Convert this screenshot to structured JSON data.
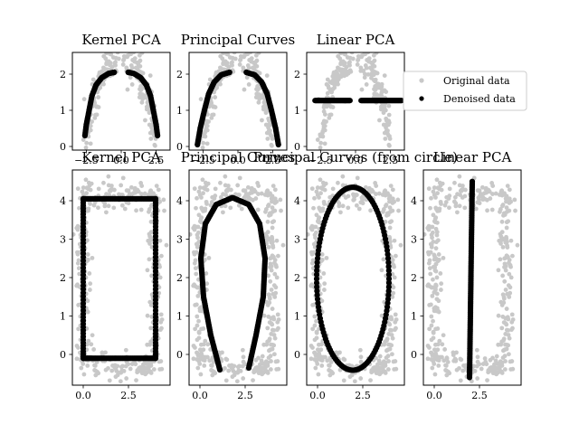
{
  "chart_data": [
    {
      "type": "scatter",
      "title": "Kernel PCA",
      "xlim": [
        -3.5,
        3.5
      ],
      "ylim": [
        -0.1,
        2.6
      ],
      "xticks": [
        "-2.5",
        "0.0",
        "2.5"
      ],
      "yticks": [
        "0",
        "1",
        "2"
      ],
      "series": [
        {
          "name": "Original data",
          "color": "#c8c8c8",
          "description": "two noisy arches: x between about -2.6 and -0.4 and between 0.4 and 2.6, y up to about 2.4"
        },
        {
          "name": "Denoised data",
          "color": "#000000",
          "points": [
            [
              -2.6,
              0.3
            ],
            [
              -2.5,
              0.6
            ],
            [
              -2.3,
              1.0
            ],
            [
              -2.1,
              1.4
            ],
            [
              -1.8,
              1.7
            ],
            [
              -1.4,
              1.9
            ],
            [
              -0.9,
              2.02
            ],
            [
              -0.5,
              2.05
            ],
            [
              0.5,
              2.05
            ],
            [
              0.9,
              2.02
            ],
            [
              1.4,
              1.9
            ],
            [
              1.8,
              1.7
            ],
            [
              2.1,
              1.4
            ],
            [
              2.3,
              1.0
            ],
            [
              2.5,
              0.6
            ],
            [
              2.6,
              0.3
            ]
          ]
        }
      ]
    },
    {
      "type": "scatter",
      "title": "Principal Curves",
      "xlim": [
        -3.5,
        3.5
      ],
      "ylim": [
        -0.1,
        2.6
      ],
      "xticks": [
        "-2.5",
        "0.0",
        "2.5"
      ],
      "yticks": [
        "0",
        "1",
        "2"
      ],
      "series": [
        {
          "name": "Original data",
          "color": "#c8c8c8"
        },
        {
          "name": "Denoised data",
          "color": "#000000",
          "points": [
            [
              -2.9,
              0.05
            ],
            [
              -2.7,
              0.5
            ],
            [
              -2.4,
              1.0
            ],
            [
              -2.1,
              1.45
            ],
            [
              -1.7,
              1.78
            ],
            [
              -1.2,
              1.98
            ],
            [
              -0.6,
              2.05
            ],
            [
              0.6,
              2.05
            ],
            [
              1.2,
              1.98
            ],
            [
              1.7,
              1.78
            ],
            [
              2.1,
              1.45
            ],
            [
              2.4,
              1.0
            ],
            [
              2.7,
              0.5
            ],
            [
              2.9,
              0.05
            ]
          ]
        }
      ]
    },
    {
      "type": "scatter",
      "title": "Linear PCA",
      "xlim": [
        -3.5,
        3.5
      ],
      "ylim": [
        -0.1,
        2.6
      ],
      "xticks": [
        "-2.5",
        "0.0",
        "2.5"
      ],
      "yticks": [
        "0",
        "1",
        "2"
      ],
      "series": [
        {
          "name": "Original data",
          "color": "#c8c8c8"
        },
        {
          "name": "Denoised data",
          "color": "#000000",
          "segments": [
            [
              [
                -2.9,
                1.27
              ],
              [
                -0.4,
                1.27
              ]
            ],
            [
              [
                0.4,
                1.27
              ],
              [
                3.3,
                1.27
              ]
            ]
          ]
        }
      ]
    },
    {
      "type": "scatter",
      "title": "Kernel PCA",
      "xlim": [
        -0.6,
        4.8
      ],
      "ylim": [
        -0.8,
        4.8
      ],
      "xticks": [
        "0.0",
        "2.5"
      ],
      "yticks": [
        "0",
        "1",
        "2",
        "3",
        "4"
      ],
      "series": [
        {
          "name": "Original data",
          "color": "#c8c8c8",
          "description": "noisy rectangle: x about 0 to 4, y about -0.5 to 4.5"
        },
        {
          "name": "Denoised data",
          "color": "#000000",
          "shape": "rounded-rectangle",
          "x_range": [
            0.0,
            4.0
          ],
          "y_range": [
            -0.1,
            4.05
          ]
        }
      ]
    },
    {
      "type": "scatter",
      "title": "Principal Curves",
      "xlim": [
        -0.6,
        4.8
      ],
      "ylim": [
        -0.8,
        4.8
      ],
      "xticks": [
        "0.0",
        "2.5"
      ],
      "yticks": [
        "0",
        "1",
        "2",
        "3",
        "4"
      ],
      "series": [
        {
          "name": "Original data",
          "color": "#c8c8c8"
        },
        {
          "name": "Denoised data",
          "color": "#000000",
          "points": [
            [
              1.1,
              -0.4
            ],
            [
              0.6,
              0.5
            ],
            [
              0.2,
              1.5
            ],
            [
              0.05,
              2.5
            ],
            [
              0.3,
              3.4
            ],
            [
              0.9,
              3.9
            ],
            [
              1.8,
              4.08
            ],
            [
              2.7,
              3.9
            ],
            [
              3.3,
              3.4
            ],
            [
              3.6,
              2.5
            ],
            [
              3.5,
              1.5
            ],
            [
              3.1,
              0.5
            ],
            [
              2.7,
              -0.35
            ]
          ]
        }
      ]
    },
    {
      "type": "scatter",
      "title": "Principal Curves (from circle)",
      "xlim": [
        -0.6,
        4.8
      ],
      "ylim": [
        -0.8,
        4.8
      ],
      "xticks": [
        "0.0",
        "2.5"
      ],
      "yticks": [
        "0",
        "1",
        "2",
        "3",
        "4"
      ],
      "series": [
        {
          "name": "Original data",
          "color": "#c8c8c8"
        },
        {
          "name": "Denoised data",
          "color": "#000000",
          "shape": "ellipse",
          "center": [
            1.95,
            1.97
          ],
          "radii": [
            2.0,
            2.38
          ]
        }
      ]
    },
    {
      "type": "scatter",
      "title": "Linear PCA",
      "xlim": [
        -0.6,
        4.8
      ],
      "ylim": [
        -0.8,
        4.8
      ],
      "xticks": [
        "0.0",
        "2.5"
      ],
      "yticks": [
        "0",
        "1",
        "2",
        "3",
        "4"
      ],
      "series": [
        {
          "name": "Original data",
          "color": "#c8c8c8"
        },
        {
          "name": "Denoised data",
          "color": "#000000",
          "segments": [
            [
              [
                1.95,
                -0.6
              ],
              [
                2.1,
                4.5
              ]
            ]
          ]
        }
      ]
    }
  ],
  "legend": {
    "placement": "right of top row",
    "items": [
      {
        "label": "Original data",
        "color": "#c8c8c8"
      },
      {
        "label": "Denoised data",
        "color": "#000000"
      }
    ]
  }
}
